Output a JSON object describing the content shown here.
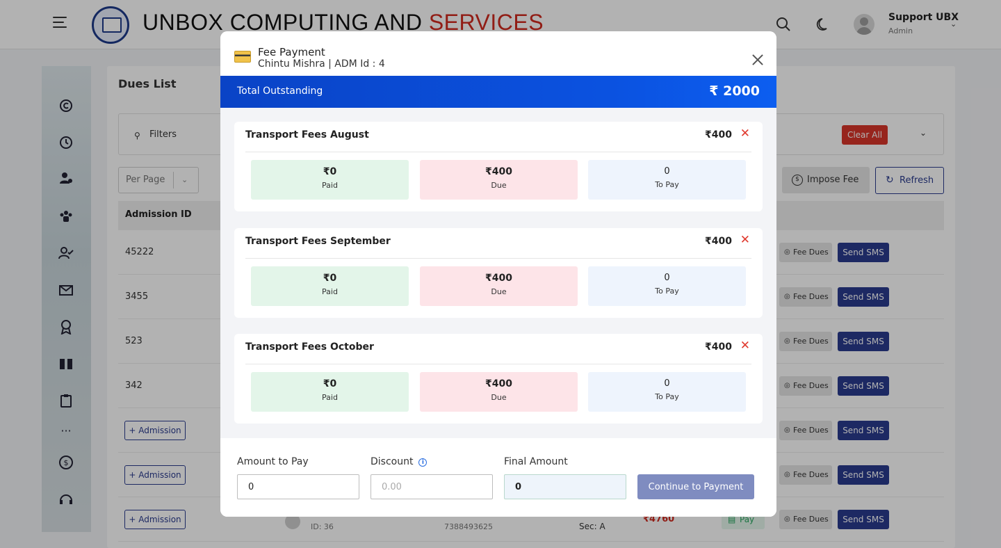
{
  "app": {
    "brand_main": "UNBOX COMPUTING AND ",
    "brand_accent": "SERVICES",
    "user_name": "Support UBX",
    "user_role": "Admin"
  },
  "page": {
    "title": "Dues List",
    "filters_label": "Filters",
    "clear_all": "Clear All",
    "per_page": "Per Page",
    "impose_fee": "Impose Fee",
    "refresh": "Refresh",
    "col_admission_id": "Admission ID",
    "rows": [
      {
        "id": "45222"
      },
      {
        "id": "3455"
      },
      {
        "id": "523"
      },
      {
        "id": "342"
      }
    ],
    "admission_btn": "+ Admission",
    "fee_dues_btn": "Fee Dues",
    "send_sms_btn": "Send SMS",
    "pay_btn": "Pay",
    "last_row": {
      "student_id": "ID: 36",
      "phone": "7388493625",
      "sec": "Sec: A",
      "amount": "₹4760"
    }
  },
  "modal": {
    "title": "Fee Payment",
    "subtitle": "Chintu Mishra | ADM Id : 4",
    "total_label": "Total Outstanding",
    "total_value": "₹ 2000",
    "fees": [
      {
        "name": "Transport Fees August",
        "amount": "₹400",
        "paid": "₹0",
        "paid_label": "Paid",
        "due": "₹400",
        "due_label": "Due",
        "to_pay": "0",
        "to_pay_label": "To Pay"
      },
      {
        "name": "Transport Fees September",
        "amount": "₹400",
        "paid": "₹0",
        "paid_label": "Paid",
        "due": "₹400",
        "due_label": "Due",
        "to_pay": "0",
        "to_pay_label": "To Pay"
      },
      {
        "name": "Transport Fees October",
        "amount": "₹400",
        "paid": "₹0",
        "paid_label": "Paid",
        "due": "₹400",
        "due_label": "Due",
        "to_pay": "0",
        "to_pay_label": "To Pay"
      }
    ],
    "amount_label": "Amount to Pay",
    "amount_value": "0",
    "discount_label": "Discount",
    "discount_placeholder": "0.00",
    "final_label": "Final Amount",
    "final_value": "0",
    "continue_label": "Continue to Payment"
  },
  "colors": {
    "brand_accent": "#d02a1f",
    "primary_navy": "#2a3b8f",
    "outstanding_blue": "#0b52e0",
    "paid_bg": "#e3f5e9",
    "due_bg": "#fde4e8",
    "topay_bg": "#eef4fd",
    "remove_red": "#e03a2f"
  },
  "icons": {
    "menu": "hamburger-icon",
    "search": "search-icon",
    "theme": "moon-icon",
    "close": "close-icon",
    "payment": "credit-card-icon",
    "remove": "x-icon",
    "info": "info-icon"
  }
}
